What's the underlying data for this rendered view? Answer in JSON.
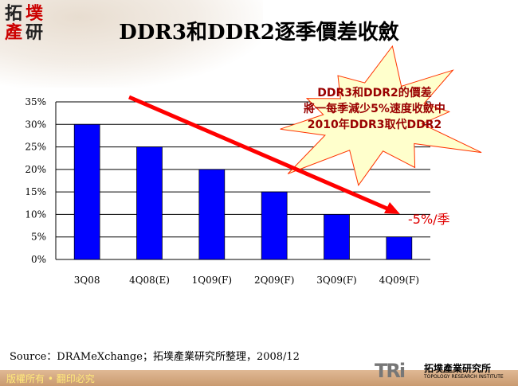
{
  "title": "DDR3和DDR2逐季價差收斂",
  "logo": {
    "text": [
      "拓",
      "墣",
      "產",
      "研"
    ]
  },
  "callout": {
    "lines": [
      "DDR3和DDR2的價差",
      "將一每季減少5%速度收斂中",
      "2010年DDR3取代DDR2"
    ]
  },
  "trend_label": "-5%/季",
  "source": "Source：DRAMeXchange；拓墣產業研究所整理，2008/12",
  "footer": {
    "copyright": "版權所有 • 翻印必究",
    "brand_mark": "TRi",
    "brand_cn": "拓墣產業研究所",
    "brand_en": "TOPOLOGY RESEARCH INSTITUTE"
  },
  "colors": {
    "bar": "#0000ff",
    "arrow": "#ff0000",
    "callout_fill": "#ffffcc",
    "callout_text": "#990000"
  },
  "chart_data": {
    "type": "bar",
    "categories": [
      "3Q08",
      "4Q08(E)",
      "1Q09(F)",
      "2Q09(F)",
      "3Q09(F)",
      "4Q09(F)"
    ],
    "values": [
      30,
      25,
      20,
      15,
      10,
      5
    ],
    "ylim": [
      0,
      35
    ],
    "yticks": [
      "0%",
      "5%",
      "10%",
      "15%",
      "20%",
      "25%",
      "30%",
      "35%"
    ],
    "grid": true,
    "legend": "none"
  }
}
